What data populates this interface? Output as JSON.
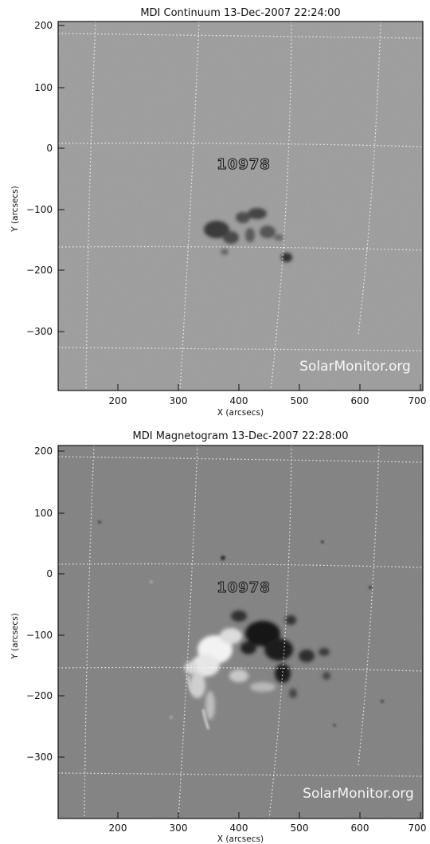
{
  "panels": [
    {
      "id": "continuum",
      "title": "MDI Continuum 13-Dec-2007 22:24:00",
      "region_label": "10978",
      "watermark": "SolarMonitor.org",
      "x_axis_label": "X (arcsecs)",
      "y_axis_label": "Y (arcsecs)",
      "x_ticks": [
        "200",
        "300",
        "400",
        "500",
        "600",
        "700"
      ],
      "y_ticks": [
        "200",
        "100",
        "0",
        "−100",
        "−200",
        "−300"
      ],
      "background_color": "#9a9a9a"
    },
    {
      "id": "magnetogram",
      "title": "MDI Magnetogram 13-Dec-2007 22:28:00",
      "region_label": "10978",
      "watermark": "SolarMonitor.org",
      "x_axis_label": "X (arcsecs)",
      "y_axis_label": "Y (arcsecs)",
      "x_ticks": [
        "200",
        "300",
        "400",
        "500",
        "600",
        "700"
      ],
      "y_ticks": [
        "200",
        "100",
        "0",
        "−100",
        "−200",
        "−300"
      ],
      "background_color": "#808080"
    }
  ]
}
